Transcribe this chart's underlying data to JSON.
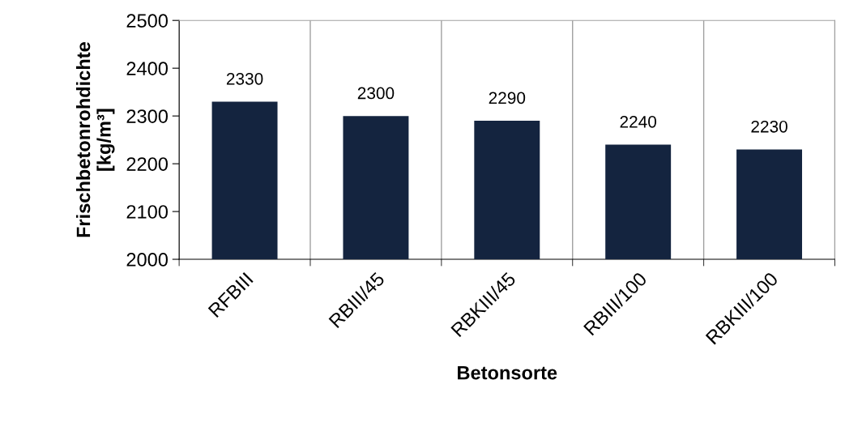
{
  "chart_data": {
    "type": "bar",
    "xlabel": "Betonsorte",
    "ylabel": "Frischbetonrohdichte\n[kg/m³]",
    "categories": [
      "RFBIII",
      "RBIII/45",
      "RBKIII/45",
      "RBIII/100",
      "RBKIII/100"
    ],
    "values": [
      2330,
      2300,
      2290,
      2240,
      2230
    ],
    "color": "#14243f",
    "ylim": [
      2000,
      2500
    ],
    "yticks": [
      2000,
      2100,
      2200,
      2300,
      2400,
      2500
    ],
    "grid": "x",
    "data_labels": true
  }
}
